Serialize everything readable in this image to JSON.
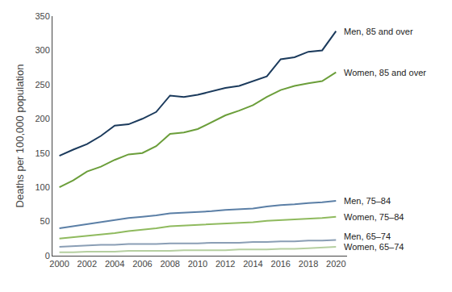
{
  "chart_data": {
    "type": "line",
    "ylabel": "Deaths per 100,000 population",
    "x": [
      2000,
      2001,
      2002,
      2003,
      2004,
      2005,
      2006,
      2007,
      2008,
      2009,
      2010,
      2011,
      2012,
      2013,
      2014,
      2015,
      2016,
      2017,
      2018,
      2019,
      2020
    ],
    "series": [
      {
        "name": "Men, 85 and over",
        "color": "#1b3a5c",
        "values": [
          146,
          155,
          163,
          175,
          190,
          192,
          200,
          210,
          234,
          232,
          235,
          240,
          245,
          248,
          255,
          262,
          287,
          290,
          298,
          300,
          328
        ]
      },
      {
        "name": "Women, 85 and over",
        "color": "#6b9e3a",
        "values": [
          100,
          110,
          123,
          130,
          140,
          148,
          150,
          160,
          178,
          180,
          185,
          195,
          205,
          212,
          220,
          232,
          242,
          248,
          252,
          255,
          268
        ]
      },
      {
        "name": "Men, 75–84",
        "color": "#5b7fa6",
        "values": [
          40,
          43,
          46,
          49,
          52,
          55,
          57,
          59,
          62,
          63,
          64,
          65,
          67,
          68,
          69,
          72,
          74,
          75,
          77,
          78,
          80
        ]
      },
      {
        "name": "Women, 75–84",
        "color": "#8fba5e",
        "values": [
          25,
          27,
          29,
          31,
          33,
          36,
          38,
          40,
          43,
          44,
          45,
          46,
          47,
          48,
          49,
          51,
          52,
          53,
          54,
          55,
          57
        ]
      },
      {
        "name": "Men, 65–74",
        "color": "#8a9eb5",
        "values": [
          13,
          14,
          15,
          16,
          16,
          17,
          17,
          17,
          18,
          18,
          18,
          19,
          19,
          19,
          20,
          20,
          21,
          21,
          22,
          22,
          23
        ]
      },
      {
        "name": "Women, 65–74",
        "color": "#b5cfa0",
        "values": [
          5,
          5,
          6,
          6,
          6,
          7,
          7,
          7,
          7,
          8,
          8,
          8,
          8,
          9,
          9,
          9,
          10,
          10,
          11,
          12,
          13
        ]
      }
    ],
    "xlim": [
      1999.5,
      2020.8
    ],
    "xticks": [
      2000,
      2002,
      2004,
      2006,
      2008,
      2010,
      2012,
      2014,
      2016,
      2018,
      2020
    ],
    "ylim": [
      0,
      350
    ],
    "yticks": [
      0,
      50,
      100,
      150,
      200,
      250,
      300,
      350
    ],
    "grid": false
  }
}
